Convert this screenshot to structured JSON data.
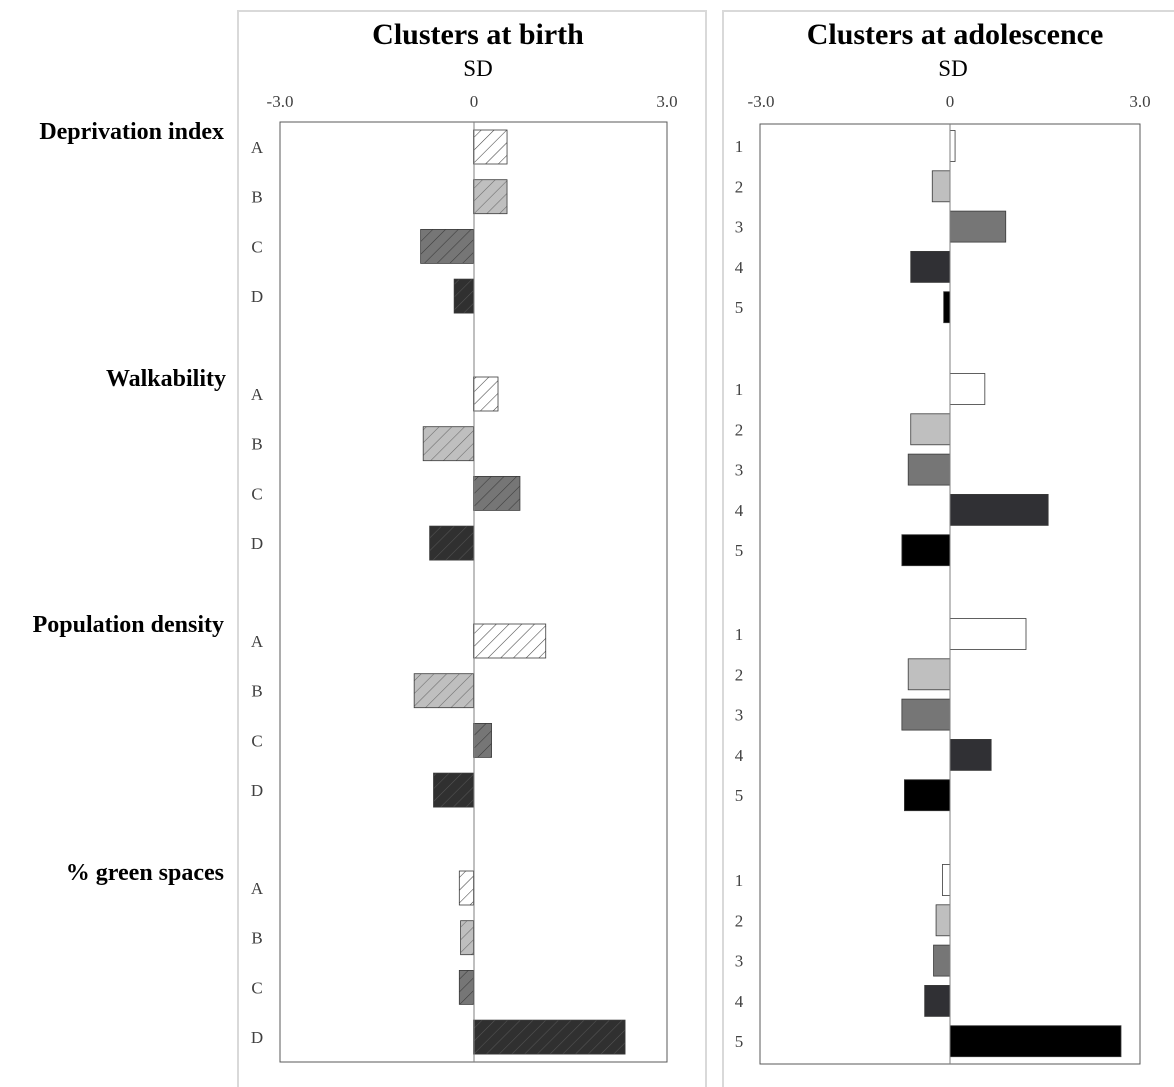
{
  "variables": [
    "Deprivation index",
    "Walkability",
    "Population density",
    "% green spaces"
  ],
  "chart_data": [
    {
      "type": "bar",
      "orientation": "horizontal",
      "title": "Clusters at birth",
      "xlabel": "SD",
      "xlim": [
        -3.0,
        3.0
      ],
      "ticks": [
        "-3.0",
        "0",
        "3.0"
      ],
      "categories": [
        "A",
        "B",
        "C",
        "D"
      ],
      "fill_pattern": "hatched",
      "colors": [
        "#ffffff",
        "#bfbfbf",
        "#767676",
        "#303030"
      ],
      "groups": [
        {
          "name": "Deprivation index",
          "values": [
            0.52,
            0.52,
            -0.82,
            -0.3
          ]
        },
        {
          "name": "Walkability",
          "values": [
            0.38,
            -0.78,
            0.72,
            -0.68
          ]
        },
        {
          "name": "Population density",
          "values": [
            1.12,
            -0.92,
            0.28,
            -0.62
          ]
        },
        {
          "name": "% green spaces",
          "values": [
            -0.22,
            -0.2,
            -0.22,
            2.35
          ]
        }
      ]
    },
    {
      "type": "bar",
      "orientation": "horizontal",
      "title": "Clusters at adolescence",
      "xlabel": "SD",
      "xlim": [
        -3.0,
        3.0
      ],
      "ticks": [
        "-3.0",
        "0",
        "3.0"
      ],
      "categories": [
        "1",
        "2",
        "3",
        "4",
        "5"
      ],
      "fill_pattern": "solid",
      "colors": [
        "#ffffff",
        "#bfbfbf",
        "#767676",
        "#303034",
        "#000000"
      ],
      "groups": [
        {
          "name": "Deprivation index",
          "values": [
            0.08,
            -0.28,
            0.88,
            -0.62,
            -0.1
          ]
        },
        {
          "name": "Walkability",
          "values": [
            0.55,
            -0.62,
            -0.66,
            1.55,
            -0.76
          ]
        },
        {
          "name": "Population density",
          "values": [
            1.2,
            -0.66,
            -0.76,
            0.65,
            -0.72
          ]
        },
        {
          "name": "% green spaces",
          "values": [
            -0.12,
            -0.22,
            -0.26,
            -0.4,
            2.7
          ]
        }
      ]
    }
  ]
}
